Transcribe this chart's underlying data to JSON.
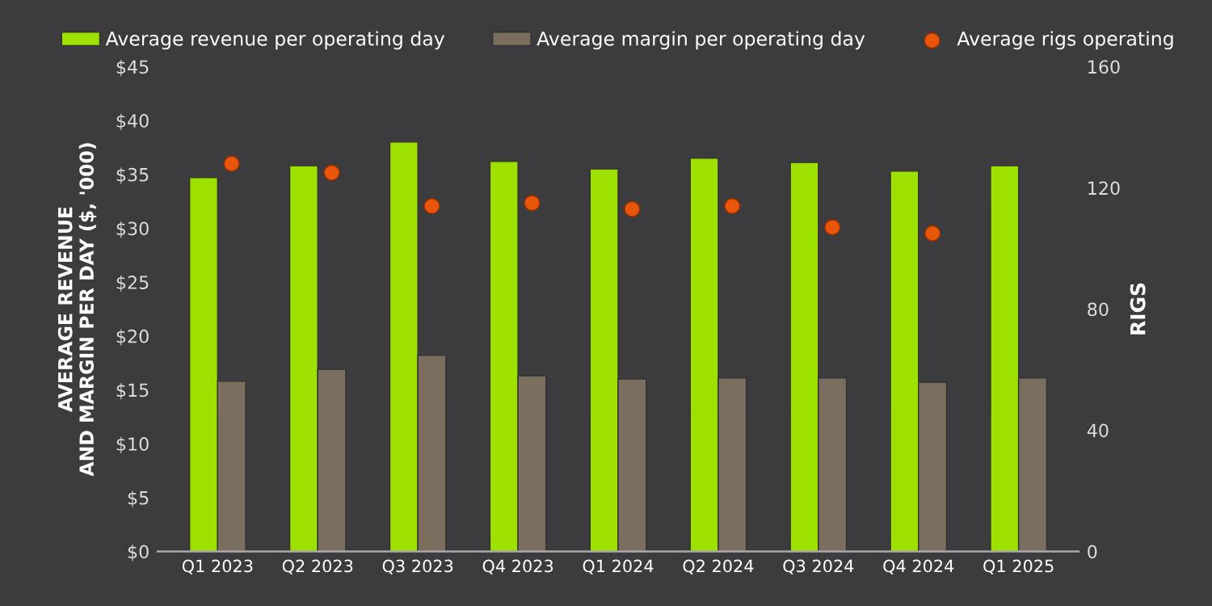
{
  "chart_data": {
    "type": "bar",
    "categories": [
      "Q1 2023",
      "Q2 2023",
      "Q3 2023",
      "Q4 2023",
      "Q1 2024",
      "Q2 2024",
      "Q3 2024",
      "Q4 2024",
      "Q1 2025"
    ],
    "ylabel": "AVERAGE REVENUE\nAND MARGIN PER DAY ($, '000)",
    "y2label": "RIGS",
    "series": [
      {
        "name": "Average revenue per operating day",
        "color": "#9ee000",
        "values": [
          34.7,
          35.8,
          38.0,
          36.2,
          35.5,
          36.5,
          36.1,
          35.3,
          35.8
        ]
      },
      {
        "name": "Average margin per operating day",
        "color": "#7a6e5e",
        "values": [
          15.8,
          16.9,
          18.2,
          16.3,
          16.0,
          16.1,
          16.1,
          15.7,
          16.1
        ]
      },
      {
        "name": "Average rigs operating",
        "type": "scatter",
        "axis": "y2",
        "color": "#e8560a",
        "marker": "circle",
        "values": [
          128,
          125,
          114,
          115,
          113,
          114,
          107,
          105,
          null
        ]
      }
    ],
    "ylim": [
      0,
      45
    ],
    "yticks": [
      {
        "value": 0,
        "label": "$0"
      },
      {
        "value": 5,
        "label": "$5"
      },
      {
        "value": 10,
        "label": "$10"
      },
      {
        "value": 15,
        "label": "$15"
      },
      {
        "value": 20,
        "label": "$20"
      },
      {
        "value": 25,
        "label": "$25"
      },
      {
        "value": 30,
        "label": "$30"
      },
      {
        "value": 35,
        "label": "$35"
      },
      {
        "value": 40,
        "label": "$40"
      },
      {
        "value": 45,
        "label": "$45"
      }
    ],
    "y2lim": [
      0,
      160
    ],
    "y2ticks": [
      0,
      40,
      80,
      120,
      160
    ],
    "grid": false,
    "legend": "top"
  }
}
